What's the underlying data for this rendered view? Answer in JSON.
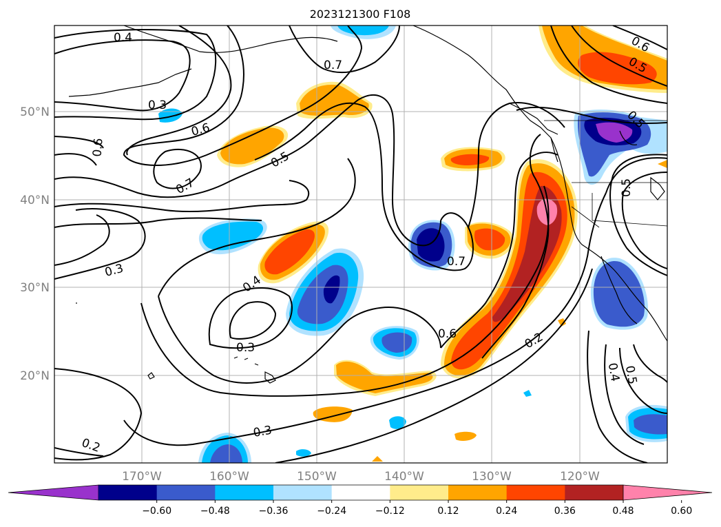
{
  "title": "2023121300 F108",
  "lon_labels": [
    "170°W",
    "160°W",
    "150°W",
    "140°W",
    "130°W",
    "120°W"
  ],
  "lat_labels": [
    "50°N",
    "40°N",
    "30°N",
    "20°N"
  ],
  "colorbar": {
    "tick_labels": [
      "−0.60",
      "−0.48",
      "−0.36",
      "−0.24",
      "−0.12",
      "0.12",
      "0.24",
      "0.36",
      "0.48",
      "0.60"
    ],
    "colors": [
      "#9932cc",
      "#00008b",
      "#3a5bcc",
      "#00bfff",
      "#b0e2ff",
      "#ffffff",
      "#ffec8b",
      "#ffa500",
      "#ff4500",
      "#b22222",
      "#ff82ab"
    ],
    "extend": "both"
  },
  "contour_labels": [
    "0.4",
    "0.7",
    "0.3",
    "0.6",
    "0.6",
    "0.5",
    "0.7",
    "0.5",
    "0.6",
    "0.5",
    "0.7",
    "0.5",
    "0.3",
    "0.4",
    "0.3",
    "0.6",
    "0.2",
    "0.3",
    "0.2",
    "0.4",
    "0.5"
  ],
  "shading_colors": {
    "purple": "#9932cc",
    "navy": "#00008b",
    "blue": "#3a5bcc",
    "cyan": "#00bfff",
    "lightblue": "#b0e2ff",
    "yellow": "#ffec8b",
    "orange": "#ffa500",
    "redorange": "#ff4500",
    "firebrick": "#b22222",
    "pink": "#ff82ab"
  }
}
